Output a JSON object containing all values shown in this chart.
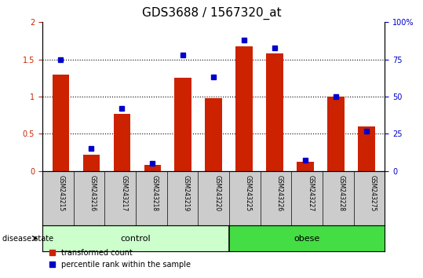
{
  "title": "GDS3688 / 1567320_at",
  "samples": [
    "GSM243215",
    "GSM243216",
    "GSM243217",
    "GSM243218",
    "GSM243219",
    "GSM243220",
    "GSM243225",
    "GSM243226",
    "GSM243227",
    "GSM243228",
    "GSM243275"
  ],
  "red_values": [
    1.3,
    0.22,
    0.77,
    0.08,
    1.25,
    0.98,
    1.68,
    1.58,
    0.12,
    1.0,
    0.6
  ],
  "blue_values": [
    75,
    15,
    42,
    5,
    78,
    63,
    88,
    83,
    7,
    50,
    27
  ],
  "red_color": "#cc2200",
  "blue_color": "#0000cc",
  "ylim_left": [
    0,
    2
  ],
  "ylim_right": [
    0,
    100
  ],
  "yticks_left": [
    0,
    0.5,
    1.0,
    1.5,
    2.0
  ],
  "yticks_right": [
    0,
    25,
    50,
    75,
    100
  ],
  "yticklabels_left": [
    "0",
    "0.5",
    "1",
    "1.5",
    "2"
  ],
  "yticklabels_right": [
    "0",
    "25",
    "50",
    "75",
    "100%"
  ],
  "n_control": 6,
  "n_obese": 5,
  "control_color": "#ccffcc",
  "obese_color": "#44dd44",
  "disease_label": "disease state",
  "bar_width": 0.55,
  "legend_red": "transformed count",
  "legend_blue": "percentile rank within the sample",
  "xlabel_area_color": "#cccccc",
  "title_fontsize": 11,
  "tick_fontsize": 7,
  "axis_fontsize": 7
}
